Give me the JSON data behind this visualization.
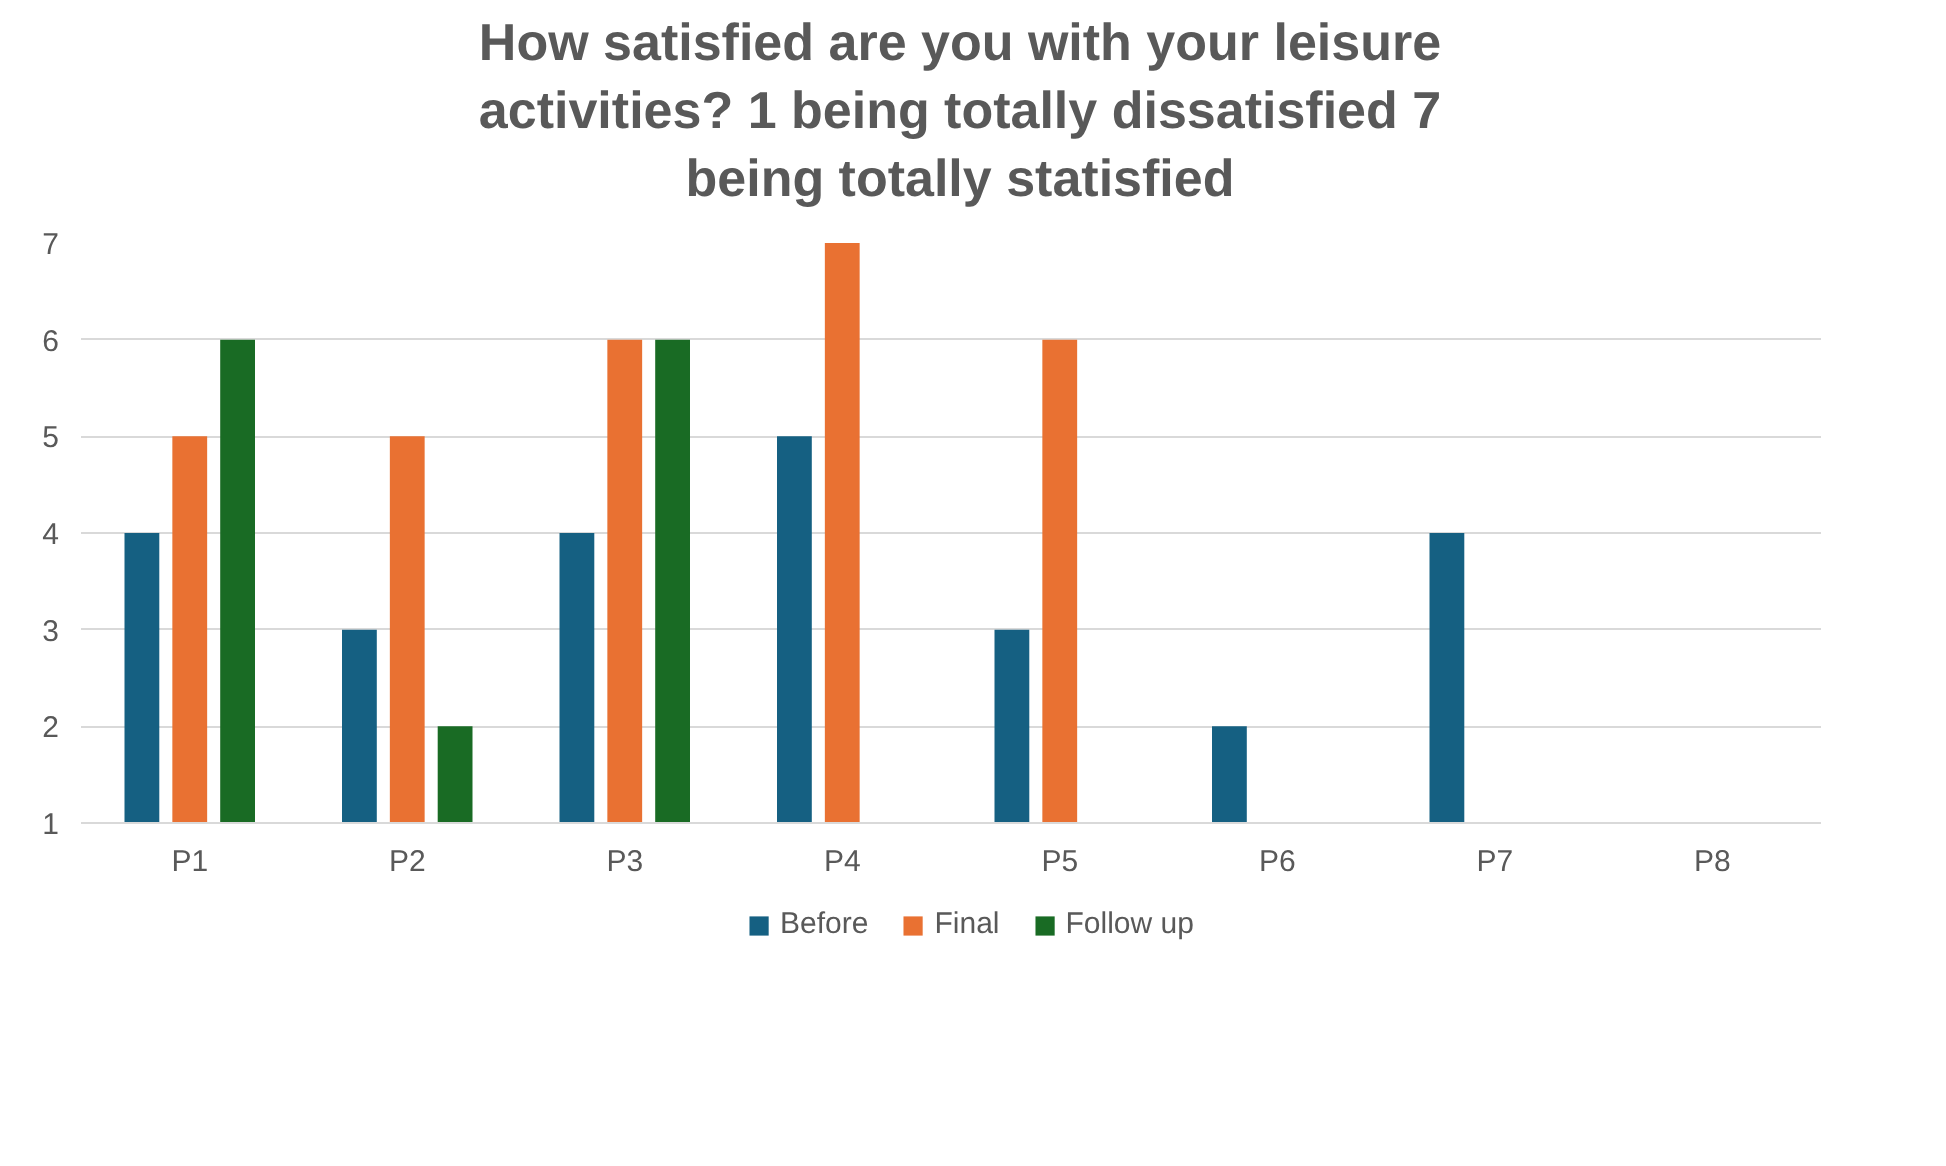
{
  "chart_data": {
    "type": "bar",
    "title": "How satisfied are you with your leisure activities? 1 being totally dissatisfied  7 being totally statisfied",
    "categories": [
      "P1",
      "P2",
      "P3",
      "P4",
      "P5",
      "P6",
      "P7",
      "P8"
    ],
    "series": [
      {
        "name": "Before",
        "color": "#156082",
        "values": [
          4,
          3,
          4,
          5,
          3,
          2,
          4,
          null
        ]
      },
      {
        "name": "Final",
        "color": "#e97132",
        "values": [
          5,
          5,
          6,
          7,
          6,
          null,
          null,
          null
        ]
      },
      {
        "name": "Follow up",
        "color": "#196b24",
        "values": [
          6,
          2,
          6,
          null,
          null,
          null,
          null,
          null
        ]
      }
    ],
    "ylim": [
      1,
      7
    ],
    "yticks": [
      1,
      2,
      3,
      4,
      5,
      6,
      7
    ],
    "grid": "y",
    "legend": "bottom"
  }
}
